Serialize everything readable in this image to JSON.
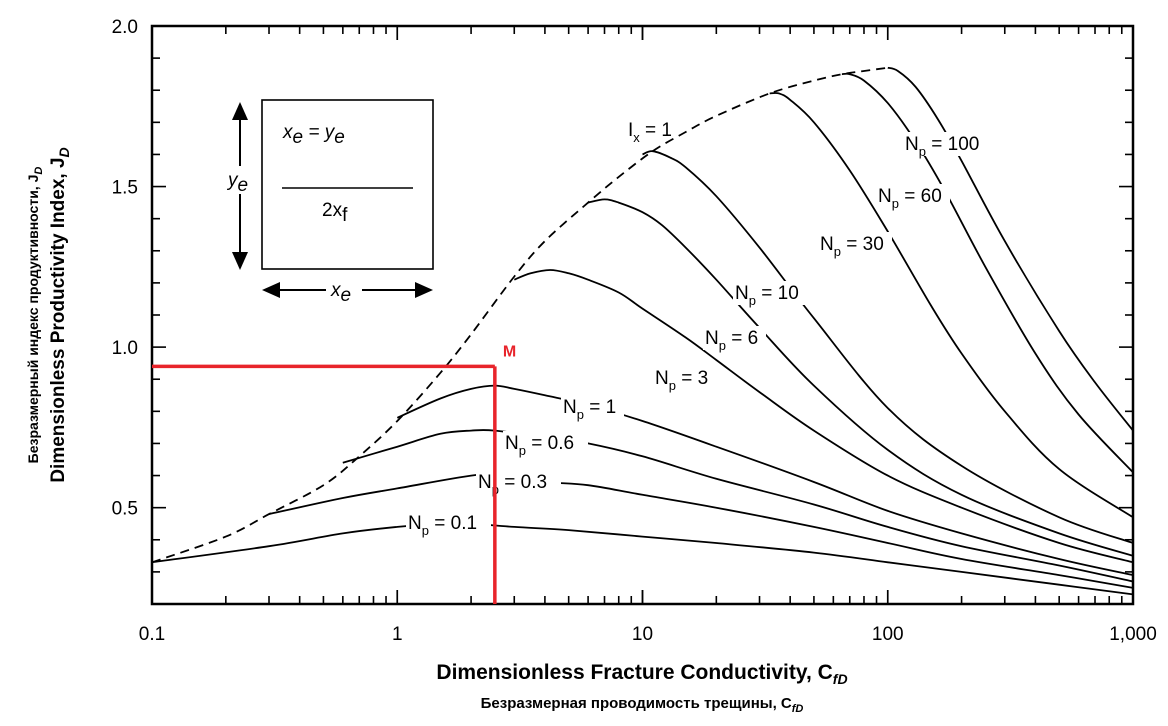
{
  "chart_data": {
    "type": "line",
    "title": "",
    "xlabel": "Dimensionless Fracture Conductivity, C",
    "xlabel_sub": "fD",
    "xlabel_ru": "Безразмерная проводимость трещины, C",
    "xlabel_ru_sub": "fD",
    "ylabel": "Dimensionless Productivity Index, J",
    "ylabel_sub": "D",
    "ylabel_ru": "Безразмерный индекс продуктивности, J",
    "ylabel_ru_sub": "D",
    "xscale": "log",
    "xlim": [
      0.1,
      1000
    ],
    "ylim": [
      0.2,
      2.0
    ],
    "xticks": [
      0.1,
      1,
      10,
      100,
      1000
    ],
    "xtick_labels": [
      "0.1",
      "1",
      "10",
      "100",
      "1,000"
    ],
    "yticks": [
      0.5,
      1.0,
      1.5,
      2.0
    ],
    "ytick_labels": [
      "0.5",
      "1.0",
      "1.5",
      "2.0"
    ],
    "envelope": {
      "name": "I_x = 1",
      "label_main": "I",
      "label_sub": "x",
      "label_rest": " = 1",
      "style": "dashed",
      "x": [
        0.1,
        0.2,
        0.3,
        0.5,
        0.7,
        1.0,
        1.5,
        2.0,
        3.0,
        4.0,
        6.0,
        8.0,
        11,
        15,
        20,
        33,
        50,
        65,
        80,
        100
      ],
      "y": [
        0.33,
        0.41,
        0.48,
        0.57,
        0.66,
        0.77,
        0.92,
        1.04,
        1.22,
        1.33,
        1.45,
        1.53,
        1.61,
        1.67,
        1.72,
        1.79,
        1.83,
        1.85,
        1.86,
        1.87
      ]
    },
    "series": [
      {
        "name": "N_p = 0.1",
        "np": "0.1",
        "x": [
          0.1,
          0.3,
          0.6,
          1.0,
          1.5,
          2.0,
          3.0,
          5.0,
          10,
          20,
          50,
          100,
          200,
          500,
          1000
        ],
        "y": [
          0.33,
          0.38,
          0.42,
          0.44,
          0.45,
          0.45,
          0.44,
          0.43,
          0.41,
          0.39,
          0.36,
          0.33,
          0.3,
          0.26,
          0.23
        ]
      },
      {
        "name": "N_p = 0.3",
        "np": "0.3",
        "x": [
          0.3,
          0.6,
          1.0,
          2.0,
          2.5,
          4.0,
          6.0,
          10,
          20,
          50,
          100,
          200,
          500,
          1000
        ],
        "y": [
          0.48,
          0.53,
          0.56,
          0.6,
          0.6,
          0.58,
          0.57,
          0.54,
          0.5,
          0.44,
          0.39,
          0.34,
          0.29,
          0.25
        ]
      },
      {
        "name": "N_p = 0.6",
        "np": "0.6",
        "x": [
          0.6,
          1.0,
          1.5,
          2.0,
          2.5,
          4.0,
          6.0,
          10,
          20,
          50,
          100,
          200,
          500,
          1000
        ],
        "y": [
          0.64,
          0.69,
          0.73,
          0.74,
          0.74,
          0.72,
          0.7,
          0.66,
          0.59,
          0.51,
          0.44,
          0.38,
          0.32,
          0.27
        ]
      },
      {
        "name": "N_p = 1",
        "np": "1",
        "x": [
          1.0,
          1.5,
          2.0,
          2.5,
          3.0,
          4.0,
          6.0,
          10,
          20,
          50,
          100,
          200,
          500,
          1000
        ],
        "y": [
          0.78,
          0.84,
          0.87,
          0.88,
          0.87,
          0.85,
          0.82,
          0.77,
          0.69,
          0.58,
          0.49,
          0.42,
          0.34,
          0.29
        ]
      },
      {
        "name": "N_p = 3",
        "np": "3",
        "x": [
          3.0,
          3.5,
          4.2,
          5.0,
          6.0,
          8.0,
          10,
          15,
          20,
          30,
          50,
          100,
          200,
          500,
          1000
        ],
        "y": [
          1.21,
          1.23,
          1.24,
          1.23,
          1.21,
          1.17,
          1.12,
          1.03,
          0.96,
          0.86,
          0.74,
          0.6,
          0.5,
          0.39,
          0.33
        ]
      },
      {
        "name": "N_p = 6",
        "np": "6",
        "x": [
          6.0,
          7.0,
          8.0,
          10,
          12,
          15,
          20,
          30,
          50,
          100,
          200,
          500,
          1000
        ],
        "y": [
          1.45,
          1.46,
          1.45,
          1.42,
          1.38,
          1.31,
          1.21,
          1.06,
          0.88,
          0.68,
          0.54,
          0.42,
          0.35
        ]
      },
      {
        "name": "N_p = 10",
        "np": "10",
        "x": [
          10,
          11,
          13,
          15,
          20,
          30,
          50,
          100,
          200,
          500,
          1000
        ],
        "y": [
          1.6,
          1.61,
          1.59,
          1.56,
          1.47,
          1.31,
          1.09,
          0.81,
          0.63,
          0.47,
          0.39
        ]
      },
      {
        "name": "N_p = 30",
        "np": "30",
        "x": [
          33,
          36,
          40,
          50,
          70,
          100,
          150,
          200,
          300,
          500,
          1000
        ],
        "y": [
          1.79,
          1.79,
          1.77,
          1.7,
          1.55,
          1.36,
          1.13,
          0.98,
          0.8,
          0.62,
          0.47
        ]
      },
      {
        "name": "N_p = 60",
        "np": "60",
        "x": [
          65,
          70,
          80,
          100,
          130,
          170,
          250,
          400,
          600,
          1000
        ],
        "y": [
          1.85,
          1.85,
          1.83,
          1.76,
          1.64,
          1.49,
          1.25,
          0.98,
          0.79,
          0.61
        ]
      },
      {
        "name": "N_p = 100",
        "np": "100",
        "x": [
          100,
          110,
          130,
          160,
          200,
          300,
          500,
          700,
          1000
        ],
        "y": [
          1.87,
          1.86,
          1.81,
          1.71,
          1.58,
          1.33,
          1.05,
          0.89,
          0.74
        ]
      }
    ],
    "marker": {
      "label": "M",
      "x": 2.5,
      "y": 0.94,
      "color": "#e8242b"
    },
    "inset": {
      "eq_main1": "x",
      "eq_sub1": "e",
      "eq_op": " = ",
      "eq_main2": "y",
      "eq_sub2": "e",
      "left_main": "y",
      "left_sub": "e",
      "center_main": "2x",
      "center_sub": "f",
      "bottom_main": "x",
      "bottom_sub": "e"
    },
    "grid": false
  }
}
